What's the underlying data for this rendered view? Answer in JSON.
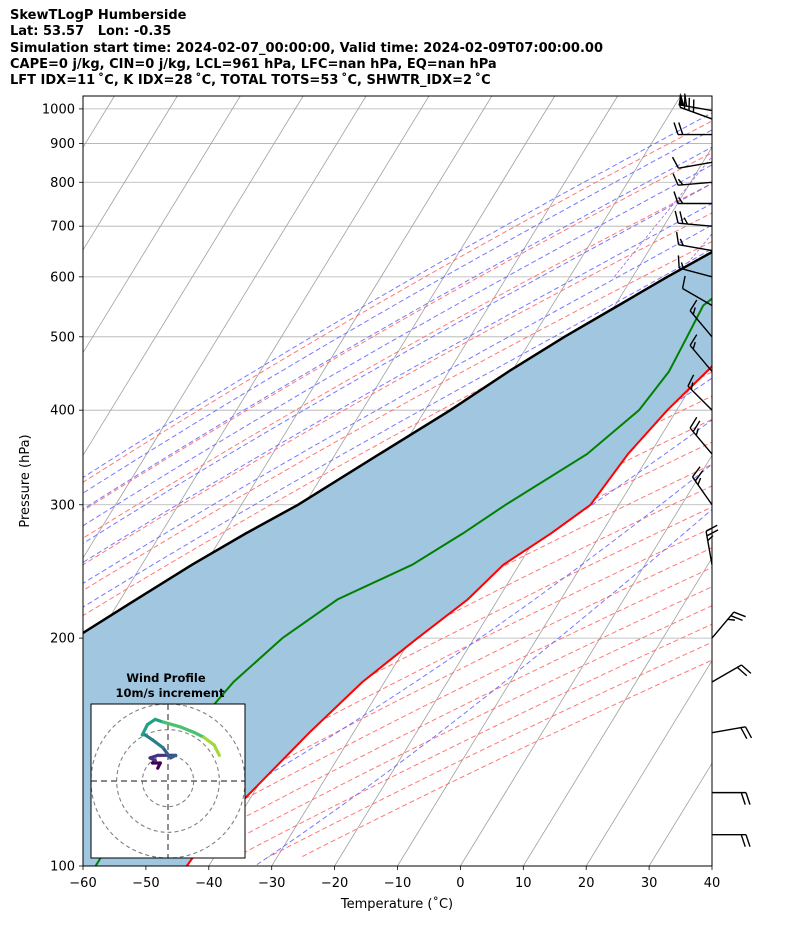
{
  "header": {
    "line1": "SkewTLogP Humberside",
    "line2": "Lat: 53.57   Lon: -0.35",
    "line3": "Simulation start time: 2024-02-07_00:00:00, Valid time: 2024-02-09T07:00:00.00",
    "line4": "CAPE=0 j/kg, CIN=0 j/kg, LCL=961 hPa, LFC=nan hPa, EQ=nan hPa",
    "line5": "LFT IDX=11 ˚C, K IDX=28 ˚C, TOTAL TOTS=53 ˚C, SHWTR_IDX=2 ˚C"
  },
  "chart_data": {
    "type": "line",
    "subtype": "skew-t log-p",
    "xlabel": "Temperature (˚C)",
    "ylabel": "Pressure (hPa)",
    "xlim": [
      -60,
      40
    ],
    "ylim": [
      1040,
      100
    ],
    "y_scale": "log",
    "x_ticks": [
      -60,
      -50,
      -40,
      -30,
      -20,
      -10,
      0,
      10,
      20,
      30,
      40
    ],
    "x_tick_labels": [
      "−60",
      "−50",
      "−40",
      "−30",
      "−20",
      "−10",
      "0",
      "10",
      "20",
      "30",
      "40"
    ],
    "y_ticks": [
      1000,
      900,
      800,
      700,
      600,
      500,
      400,
      300,
      200,
      100
    ],
    "y_tick_labels": [
      "1000",
      "900",
      "800",
      "700",
      "600",
      "500",
      "400",
      "300",
      "200",
      "100"
    ],
    "grid": true,
    "colors": {
      "temperature": "#ff0000",
      "dewpoint": "#008000",
      "parcel": "#000000",
      "fill": "#a1c6e0",
      "dry_adiabat": "#ff6060",
      "moist_adiabat": "#6060ff",
      "mixing_ratio": "#9b4fd6",
      "isotherm": "#a0a0a0"
    },
    "series": [
      {
        "role": "temperature",
        "points": [
          [
            5.8,
            1000
          ],
          [
            8.5,
            925
          ],
          [
            9.2,
            900
          ],
          [
            9.5,
            850
          ],
          [
            7.5,
            800
          ],
          [
            6.0,
            750
          ],
          [
            4.0,
            700
          ],
          [
            1.5,
            650
          ],
          [
            -1.5,
            600
          ],
          [
            -4.5,
            550
          ],
          [
            -6.8,
            500
          ],
          [
            -9.0,
            450
          ],
          [
            -11.5,
            400
          ],
          [
            -13.5,
            350
          ],
          [
            -14.5,
            300
          ],
          [
            -18.0,
            275
          ],
          [
            -22.5,
            250
          ],
          [
            -24.8,
            225
          ],
          [
            -29.0,
            200
          ],
          [
            -33.5,
            175
          ],
          [
            -37.0,
            150
          ],
          [
            -40.5,
            125
          ],
          [
            -43.0,
            110
          ],
          [
            -43.5,
            100
          ]
        ]
      },
      {
        "role": "dewpoint",
        "points": [
          [
            5.6,
            980
          ],
          [
            6.0,
            950
          ],
          [
            8.8,
            925
          ],
          [
            9.0,
            900
          ],
          [
            8.3,
            850
          ],
          [
            6.5,
            800
          ],
          [
            2.5,
            750
          ],
          [
            -2.5,
            700
          ],
          [
            -8.0,
            650
          ],
          [
            -13.0,
            600
          ],
          [
            -16.0,
            550
          ],
          [
            -15.5,
            500
          ],
          [
            -15.0,
            450
          ],
          [
            -16.0,
            400
          ],
          [
            -20.0,
            350
          ],
          [
            -28.0,
            300
          ],
          [
            -32.0,
            275
          ],
          [
            -37.0,
            250
          ],
          [
            -45.5,
            225
          ],
          [
            -50.5,
            200
          ],
          [
            -54.0,
            175
          ],
          [
            -56.0,
            150
          ],
          [
            -57.5,
            125
          ],
          [
            -58.0,
            110
          ],
          [
            -58.0,
            100
          ]
        ]
      },
      {
        "role": "parcel",
        "points": [
          [
            5.2,
            970
          ],
          [
            2.0,
            900
          ],
          [
            -2.0,
            850
          ],
          [
            -6.0,
            800
          ],
          [
            -10.0,
            750
          ],
          [
            -14.5,
            700
          ],
          [
            -19.5,
            650
          ],
          [
            -24.5,
            600
          ],
          [
            -29.5,
            550
          ],
          [
            -35.0,
            500
          ],
          [
            -40.5,
            450
          ],
          [
            -46.0,
            400
          ],
          [
            -53.0,
            350
          ],
          [
            -61.0,
            300
          ],
          [
            -66.5,
            275
          ],
          [
            -72.0,
            250
          ],
          [
            -77.5,
            225
          ],
          [
            -83.5,
            200
          ],
          [
            -89.5,
            175
          ],
          [
            -95.5,
            150
          ],
          [
            -101.5,
            125
          ],
          [
            -105.0,
            110
          ],
          [
            -106.5,
            100
          ]
        ]
      }
    ],
    "wind_barbs": [
      {
        "pressure": 995,
        "speed_kt": 60,
        "direction_deg": 280
      },
      {
        "pressure": 970,
        "speed_kt": 40,
        "direction_deg": 290
      },
      {
        "pressure": 925,
        "speed_kt": 20,
        "direction_deg": 270
      },
      {
        "pressure": 850,
        "speed_kt": 10,
        "direction_deg": 260
      },
      {
        "pressure": 800,
        "speed_kt": 15,
        "direction_deg": 265
      },
      {
        "pressure": 750,
        "speed_kt": 15,
        "direction_deg": 270
      },
      {
        "pressure": 700,
        "speed_kt": 25,
        "direction_deg": 275
      },
      {
        "pressure": 650,
        "speed_kt": 15,
        "direction_deg": 280
      },
      {
        "pressure": 600,
        "speed_kt": 15,
        "direction_deg": 285
      },
      {
        "pressure": 550,
        "speed_kt": 10,
        "direction_deg": 300
      },
      {
        "pressure": 500,
        "speed_kt": 15,
        "direction_deg": 320
      },
      {
        "pressure": 450,
        "speed_kt": 15,
        "direction_deg": 320
      },
      {
        "pressure": 400,
        "speed_kt": 15,
        "direction_deg": 315
      },
      {
        "pressure": 350,
        "speed_kt": 25,
        "direction_deg": 320
      },
      {
        "pressure": 300,
        "speed_kt": 25,
        "direction_deg": 325
      },
      {
        "pressure": 250,
        "speed_kt": 25,
        "direction_deg": 350
      },
      {
        "pressure": 200,
        "speed_kt": 25,
        "direction_deg": 40
      },
      {
        "pressure": 175,
        "speed_kt": 20,
        "direction_deg": 60
      },
      {
        "pressure": 150,
        "speed_kt": 20,
        "direction_deg": 80
      },
      {
        "pressure": 125,
        "speed_kt": 20,
        "direction_deg": 90
      },
      {
        "pressure": 110,
        "speed_kt": 20,
        "direction_deg": 90
      }
    ],
    "hodograph": {
      "title_line1": "Wind Profile",
      "title_line2": "10m/s increment",
      "ring_step_ms": 10,
      "colormap": "viridis",
      "points_ms": [
        [
          -4,
          5
        ],
        [
          -3,
          7
        ],
        [
          -6,
          7
        ],
        [
          -5,
          8
        ],
        [
          -7,
          9
        ],
        [
          -4,
          10
        ],
        [
          2,
          10
        ],
        [
          3,
          10
        ],
        [
          1,
          9
        ],
        [
          -2,
          13
        ],
        [
          -6,
          16
        ],
        [
          -9,
          18
        ],
        [
          -10,
          18
        ],
        [
          -8,
          22
        ],
        [
          -5,
          24
        ],
        [
          -2,
          23
        ],
        [
          5,
          21
        ],
        [
          10,
          19
        ],
        [
          14,
          17
        ],
        [
          18,
          14
        ],
        [
          20,
          10
        ]
      ]
    }
  }
}
